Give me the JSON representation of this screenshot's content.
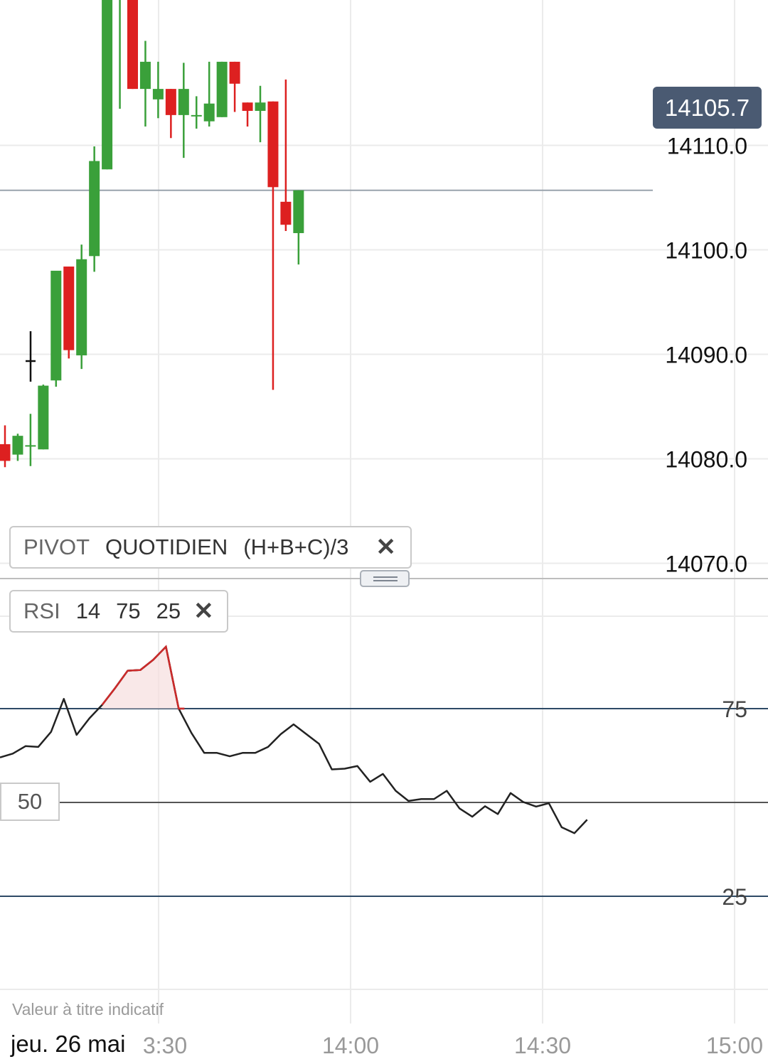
{
  "colors": {
    "up": "#3aa03a",
    "down": "#dd2020",
    "grid": "#ebebeb",
    "rsi_line": "#222222",
    "rsi_overbought": "#cc2a2a",
    "threshold_line": "#2e4a66",
    "last_price_tag": "#4a5a72"
  },
  "price_axis": {
    "labels": [
      "14110.0",
      "14100.0",
      "14090.0",
      "14080.0",
      "14070.0"
    ],
    "last_price": "14105.7"
  },
  "time_axis": {
    "date_label": "jeu. 26 mai",
    "labels": [
      "3:30",
      "14:00",
      "14:30",
      "15:00"
    ]
  },
  "indicators": {
    "pivot": {
      "parts": [
        "PIVOT",
        "QUOTIDIEN",
        "(H+B+C)/3"
      ],
      "remove_icon": "close-icon"
    },
    "rsi": {
      "parts": [
        "RSI",
        "14",
        "75",
        "25"
      ],
      "remove_icon": "close-icon"
    }
  },
  "rsi_axis": {
    "upper": "75",
    "middle": "50",
    "lower": "25"
  },
  "disclaimer": "Valeur à titre indicatif",
  "chart_data": [
    {
      "type": "candlestick",
      "title": "",
      "ylim": [
        14062,
        14122
      ],
      "grid": true,
      "last_price": 14105.7,
      "candles": [
        {
          "o": 14081.4,
          "h": 14083.2,
          "l": 14079.2,
          "c": 14079.8
        },
        {
          "o": 14080.4,
          "h": 14082.4,
          "l": 14079.8,
          "c": 14082.2
        },
        {
          "o": 14081.3,
          "h": 14084.3,
          "l": 14079.3,
          "c": 14081.3
        },
        {
          "o": 14080.9,
          "h": 14087.1,
          "l": 14080.9,
          "c": 14087.0
        },
        {
          "o": 14087.5,
          "h": 14097.9,
          "l": 14086.9,
          "c": 14098.0
        },
        {
          "o": 14098.4,
          "h": 14098.4,
          "l": 14089.6,
          "c": 14090.4
        },
        {
          "o": 14089.9,
          "h": 14100.5,
          "l": 14088.6,
          "c": 14099.1
        },
        {
          "o": 14099.4,
          "h": 14109.9,
          "l": 14097.9,
          "c": 14108.5
        },
        {
          "o": 14107.7,
          "h": 14125.0,
          "l": 14107.7,
          "c": 14125.0
        },
        {
          "o": 14125.0,
          "h": 14125.0,
          "l": 14113.5,
          "c": 14125.0
        },
        {
          "o": 14126.0,
          "h": 14126.0,
          "l": 14115.4,
          "c": 14115.4
        },
        {
          "o": 14115.4,
          "h": 14120.0,
          "l": 14111.8,
          "c": 14118.0
        },
        {
          "o": 14114.4,
          "h": 14118.0,
          "l": 14112.6,
          "c": 14115.4
        },
        {
          "o": 14115.4,
          "h": 14115.4,
          "l": 14110.7,
          "c": 14112.9
        },
        {
          "o": 14112.9,
          "h": 14117.9,
          "l": 14108.8,
          "c": 14115.4
        },
        {
          "o": 14112.9,
          "h": 14114.7,
          "l": 14111.6,
          "c": 14112.9
        },
        {
          "o": 14112.3,
          "h": 14118.0,
          "l": 14111.8,
          "c": 14114.0
        },
        {
          "o": 14112.7,
          "h": 14118.0,
          "l": 14112.7,
          "c": 14118.0
        },
        {
          "o": 14118.0,
          "h": 14118.0,
          "l": 14113.2,
          "c": 14115.9
        },
        {
          "o": 14114.1,
          "h": 14114.1,
          "l": 14111.8,
          "c": 14113.3
        },
        {
          "o": 14113.3,
          "h": 14115.7,
          "l": 14110.3,
          "c": 14114.1
        },
        {
          "o": 14114.2,
          "h": 14114.2,
          "l": 14086.6,
          "c": 14106.0
        },
        {
          "o": 14104.6,
          "h": 14116.3,
          "l": 14101.8,
          "c": 14102.4
        },
        {
          "o": 14101.6,
          "h": 14105.7,
          "l": 14098.6,
          "c": 14105.7
        }
      ]
    },
    {
      "type": "line",
      "title": "",
      "ylim": [
        0,
        100
      ],
      "series": [
        {
          "values": [
            62,
            63,
            65,
            64.8,
            68.8,
            77.6,
            68,
            72.4,
            76,
            80.4,
            85.1,
            85.3,
            88,
            91.5,
            75,
            68.5,
            63.2,
            63.2,
            62.3,
            63.2,
            63.2,
            64.8,
            68.2,
            70.8,
            68.2,
            65.6,
            58.8,
            59,
            59.7,
            55.5,
            57.6,
            53.1,
            50.4,
            50.9,
            50.9,
            53.1,
            48.4,
            46.2,
            49,
            46.9,
            52.5,
            50.1,
            48.9,
            49.8,
            43.4,
            41.8,
            45.4
          ]
        }
      ]
    }
  ]
}
